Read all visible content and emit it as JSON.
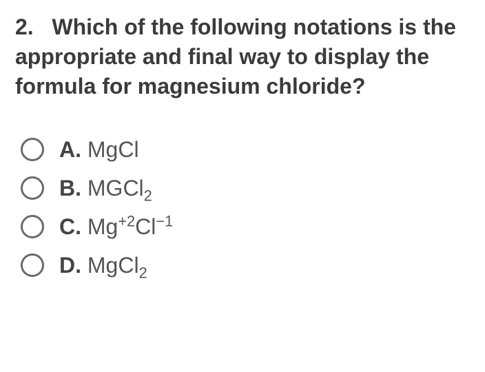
{
  "question": {
    "number": "2.",
    "text": "Which of the following notations is the appropriate and final way to display the formula for magnesium chloride?"
  },
  "options": [
    {
      "label": "A.",
      "formula_html": "MgCl"
    },
    {
      "label": "B.",
      "formula_html": "MGCl<sub>2</sub>"
    },
    {
      "label": "C.",
      "formula_html": "Mg<sup>+2</sup>Cl<sup>−1</sup>"
    },
    {
      "label": "D.",
      "formula_html": "MgCl<sub>2</sub>"
    }
  ]
}
